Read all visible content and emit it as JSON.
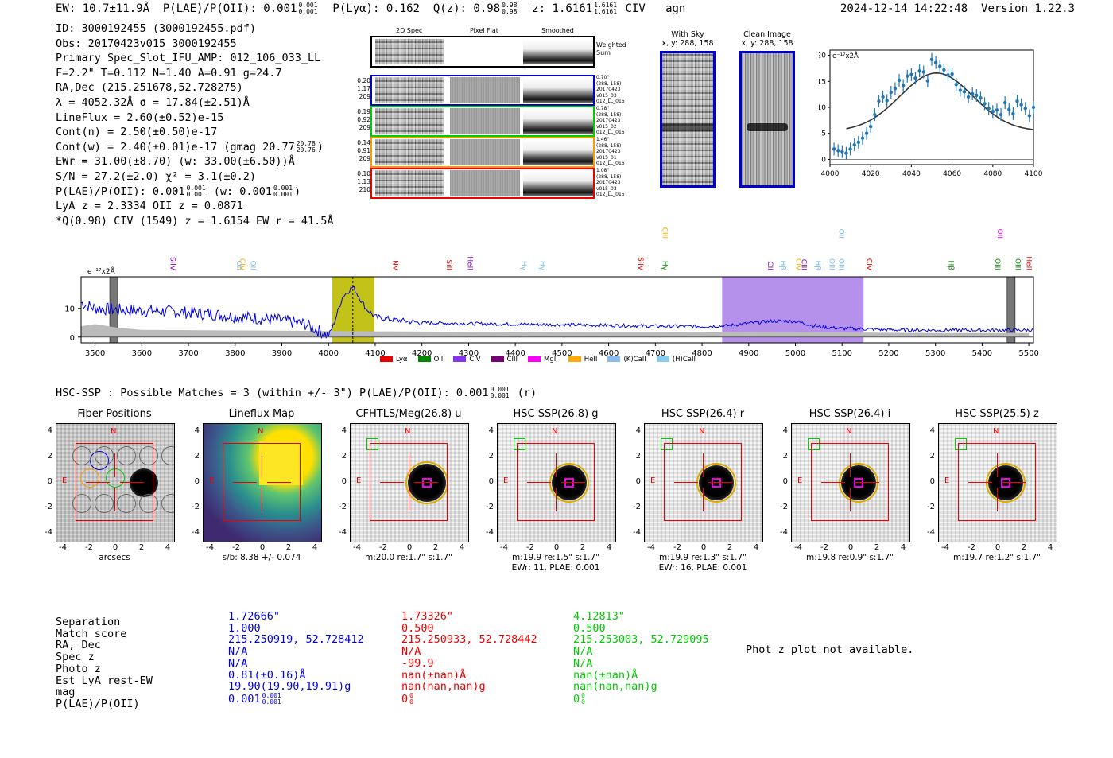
{
  "header": {
    "ew": "EW: 10.7±11.9Å",
    "plae_label": "P(LAE)/P(OII): 0.001",
    "plae_sup": "0.001",
    "plae_sub": "0.001",
    "plya": "P(Lyα): 0.162",
    "qz_label": "Q(z): 0.98",
    "qz_sup": "0.98",
    "qz_sub": "0.98",
    "z_label": "z: 1.6161",
    "z_sup": "1.6161",
    "z_sub": "1.6161",
    "z_line": "CIV",
    "z_class": "agn",
    "datetime": "2024-12-14 14:22:48",
    "version": "Version 1.22.3"
  },
  "info": {
    "id": "ID: 3000192455 (3000192455.pdf)",
    "obs": "Obs: 20170423v015_3000192455",
    "primary": "Primary Spec_Slot_IFU_AMP: 012_106_033_LL",
    "fiber": "F=2.2\"  T=0.112  N=1.40  A=0.91  g=24.7",
    "radec": "RA,Dec (215.251678,52.728275)",
    "lambda": "λ = 4052.32Å  σ = 17.84(±2.51)Å",
    "lineflux": "LineFlux = 2.60(±0.52)e-15",
    "contn": "Cont(n) = 2.50(±0.50)e-17",
    "contw": "Cont(w) = 2.40(±0.01)e-17 (gmag 20.77",
    "contw_sup": "20.78",
    "contw_sub": "20.76",
    "ewr": "EWr = 31.00(±8.70) (w: 33.00(±6.50))Å",
    "sn": "S/N = 27.2(±2.0)  χ² = 3.1(±0.2)",
    "plae": "P(LAE)/P(OII): 0.001",
    "plae_sup": "0.001",
    "plae_sub": "0.001",
    "plae_w": "(w: 0.001",
    "plae_w_sup": "0.001",
    "plae_w_sub": "0.001",
    "lya": "LyA z = 2.3334  OII z = 0.0871",
    "civ": "*Q(0.98) CIV (1549) z = 1.6154  EW r = 41.5Å"
  },
  "cutouts": {
    "col_2d": "2D Spec",
    "col_flat": "Pixel Flat",
    "col_smooth": "Smoothed",
    "weighted": "Weighted Sum",
    "rows": [
      {
        "left": [
          "0.20",
          "1.17",
          "209"
        ],
        "right": [
          "0.70\"",
          "(288, 158)",
          "20170423",
          "v015_03",
          "012_LL_016"
        ],
        "color": "#0000cc"
      },
      {
        "left": [
          "0.19",
          "0.92",
          "209"
        ],
        "right": [
          "0.78\"",
          "(288, 158)",
          "20170423",
          "v015_02",
          "012_LL_016"
        ],
        "color": "#00cc00"
      },
      {
        "left": [
          "0.14",
          "0.91",
          "209"
        ],
        "right": [
          "1.46\"",
          "(288, 158)",
          "20170423",
          "v015_01",
          "012_LL_016"
        ],
        "color": "#ff9900"
      },
      {
        "left": [
          "0.10",
          "1.13",
          "210"
        ],
        "right": [
          "1.08\"",
          "(288, 158)",
          "20170423",
          "v015_03",
          "012_LL_015"
        ],
        "color": "#ee0000"
      }
    ]
  },
  "stamps": {
    "with_sky": "With Sky",
    "with_sky_xy": "x, y: 288, 158",
    "clean": "Clean Image",
    "clean_xy": "x, y: 288, 158"
  },
  "zoom_chart": {
    "type": "scatter",
    "unit_label": "e⁻¹⁷x2Å",
    "xlim": [
      4000,
      4100
    ],
    "ylim": [
      -1,
      21
    ],
    "x_ticks": [
      "4000",
      "4020",
      "4040",
      "4060",
      "4080",
      "4100"
    ],
    "y_ticks": [
      "0",
      "5",
      "10",
      "15",
      "20"
    ],
    "points": [
      [
        4002,
        2.0
      ],
      [
        4004,
        1.7
      ],
      [
        4006,
        1.5
      ],
      [
        4008,
        1.2
      ],
      [
        4010,
        2.0
      ],
      [
        4012,
        2.8
      ],
      [
        4014,
        3.3
      ],
      [
        4016,
        4.1
      ],
      [
        4018,
        5.0
      ],
      [
        4020,
        6.3
      ],
      [
        4022,
        8.6
      ],
      [
        4024,
        11.2
      ],
      [
        4026,
        12.0
      ],
      [
        4028,
        11.3
      ],
      [
        4030,
        12.9
      ],
      [
        4032,
        13.6
      ],
      [
        4034,
        15.2
      ],
      [
        4036,
        14.2
      ],
      [
        4038,
        16.0
      ],
      [
        4040,
        16.3
      ],
      [
        4042,
        15.6
      ],
      [
        4044,
        17.0
      ],
      [
        4046,
        16.8
      ],
      [
        4048,
        15.1
      ],
      [
        4050,
        19.2
      ],
      [
        4052,
        18.6
      ],
      [
        4054,
        17.9
      ],
      [
        4056,
        17.2
      ],
      [
        4058,
        16.2
      ],
      [
        4060,
        16.4
      ],
      [
        4062,
        14.4
      ],
      [
        4064,
        13.3
      ],
      [
        4066,
        13.0
      ],
      [
        4068,
        12.0
      ],
      [
        4070,
        12.6
      ],
      [
        4072,
        12.3
      ],
      [
        4074,
        11.8
      ],
      [
        4076,
        10.7
      ],
      [
        4078,
        9.8
      ],
      [
        4080,
        9.2
      ],
      [
        4082,
        9.5
      ],
      [
        4084,
        8.6
      ],
      [
        4086,
        10.9
      ],
      [
        4088,
        9.6
      ],
      [
        4090,
        8.8
      ],
      [
        4092,
        11.2
      ],
      [
        4094,
        10.5
      ],
      [
        4096,
        9.8
      ],
      [
        4098,
        8.4
      ],
      [
        4100,
        10.0
      ]
    ],
    "fit": {
      "center": 4052.32,
      "sigma": 17.84,
      "amp": 11.2,
      "base": 5.4
    }
  },
  "chart_data": {
    "type": "line",
    "title": "",
    "unit_label": "e⁻¹⁷x2Å",
    "xlabel": "",
    "ylabel": "",
    "xlim": [
      3470,
      5510
    ],
    "ylim": [
      -2,
      21
    ],
    "x_ticks": [
      "3500",
      "3600",
      "3700",
      "3800",
      "3900",
      "4000",
      "4100",
      "4200",
      "4300",
      "4400",
      "4500",
      "4600",
      "4700",
      "4800",
      "4900",
      "5000",
      "5100",
      "5200",
      "5300",
      "5400",
      "5500"
    ],
    "y_ticks": [
      "0",
      "10"
    ],
    "series": [
      {
        "name": "spectrum",
        "color": "#0000dd",
        "x": [
          3470,
          3500,
          3520,
          3550,
          3600,
          3650,
          3700,
          3750,
          3800,
          3850,
          3900,
          3950,
          3990,
          4000,
          4010,
          4030,
          4045,
          4052,
          4060,
          4080,
          4100,
          4150,
          4200,
          4300,
          4400,
          4500,
          4600,
          4700,
          4800,
          4850,
          4900,
          4950,
          5000,
          5050,
          5100,
          5150,
          5200,
          5300,
          5400,
          5460,
          5500
        ],
        "y": [
          12,
          10,
          9.8,
          9.5,
          9.2,
          9.0,
          8.5,
          8.0,
          7.2,
          6.5,
          5.8,
          4.5,
          1.2,
          0.4,
          4.0,
          14.0,
          16.5,
          17.5,
          15.5,
          10.0,
          7.0,
          5.8,
          5.0,
          4.7,
          4.5,
          4.3,
          4.1,
          3.8,
          3.7,
          3.9,
          4.8,
          5.6,
          5.5,
          3.6,
          3.0,
          2.8,
          2.5,
          2.4,
          2.4,
          2.4,
          2.4
        ]
      },
      {
        "name": "sky",
        "color": "#bbbbbb",
        "x": [
          3470,
          3500,
          3550,
          3600,
          3700,
          3800,
          3900,
          4000,
          4100,
          4200,
          4300,
          4400,
          4500,
          4600,
          4700,
          4800,
          4900,
          5000,
          5100,
          5200,
          5300,
          5400,
          5500
        ],
        "y": [
          3.8,
          4.5,
          3.2,
          2.5,
          2.4,
          2.3,
          2.2,
          2.1,
          2.0,
          1.9,
          1.8,
          1.7,
          1.6,
          1.6,
          1.6,
          1.7,
          1.8,
          1.7,
          1.6,
          1.5,
          1.4,
          1.4,
          1.4
        ]
      }
    ],
    "regions": [
      {
        "name": "civ-region",
        "x0": 4008,
        "x1": 4098,
        "color": "#bbbb00"
      },
      {
        "name": "oii-region",
        "x0": 4843,
        "x1": 5146,
        "color": "#a97ee8"
      }
    ],
    "marker_line": 4052,
    "masks": [
      3540,
      5462
    ],
    "lines": [
      {
        "name": "SiIV",
        "x": 3658,
        "color": "#8800cc"
      },
      {
        "name": "OII",
        "x": 3800,
        "color": "#77bbee"
      },
      {
        "name": "CIV",
        "x": 3807,
        "color": "#ffaa00"
      },
      {
        "name": "OII",
        "x": 3830,
        "color": "#77bbee"
      },
      {
        "name": "NV",
        "x": 4135,
        "color": "#ee0000"
      },
      {
        "name": "SiII",
        "x": 4250,
        "color": "#ee0000"
      },
      {
        "name": "HeII",
        "x": 4295,
        "color": "#8800cc"
      },
      {
        "name": "Hγ",
        "x": 4410,
        "color": "#77bbee"
      },
      {
        "name": "Hγ",
        "x": 4450,
        "color": "#77bbee"
      },
      {
        "name": "SiIV",
        "x": 4660,
        "color": "#ee0000"
      },
      {
        "name": "Hγ",
        "x": 4712,
        "color": "#008800"
      },
      {
        "name": "CIII",
        "x": 4712,
        "color": "#ffaa00"
      },
      {
        "name": "CII",
        "x": 4938,
        "color": "#8800cc"
      },
      {
        "name": "Hβ",
        "x": 4965,
        "color": "#77bbee"
      },
      {
        "name": "CIV",
        "x": 4998,
        "color": "#ffaa00"
      },
      {
        "name": "CIII",
        "x": 5010,
        "color": "#8800cc"
      },
      {
        "name": "Hβ",
        "x": 5040,
        "color": "#77bbee"
      },
      {
        "name": "OIII",
        "x": 5070,
        "color": "#77bbee"
      },
      {
        "name": "OIII",
        "x": 5090,
        "color": "#77bbee"
      },
      {
        "name": "CIV",
        "x": 5150,
        "color": "#ee0000"
      },
      {
        "name": "Hβ",
        "x": 5325,
        "color": "#008800"
      },
      {
        "name": "OIII",
        "x": 5425,
        "color": "#008800"
      },
      {
        "name": "OIII",
        "x": 5468,
        "color": "#008800"
      },
      {
        "name": "HeII",
        "x": 5492,
        "color": "#ee0000"
      },
      {
        "name": "OII",
        "x": 5090,
        "color": "#77bbee"
      },
      {
        "name": "OII",
        "x": 5430,
        "color": "#ee00ee"
      }
    ],
    "legend": [
      {
        "label": "Lyα",
        "color": "#ee0000"
      },
      {
        "label": "OII",
        "color": "#008800"
      },
      {
        "label": "CIV",
        "color": "#8833ee"
      },
      {
        "label": "CIII",
        "color": "#770077"
      },
      {
        "label": "MgII",
        "color": "#ff00ff"
      },
      {
        "label": "HeII",
        "color": "#ffaa00"
      },
      {
        "label": "(K)CaII",
        "color": "#88bbee"
      },
      {
        "label": "(H)CaII",
        "color": "#88ccee"
      }
    ]
  },
  "matches": {
    "header": "HSC-SSP : Possible Matches = 3 (within +/- 3\")  P(LAE)/P(OII): 0.001",
    "header_sup": "0.001",
    "header_sub": "0.001",
    "header_tail": "(r)"
  },
  "panels": [
    {
      "title": "Fiber Positions",
      "xlabel": "arcsecs",
      "note1": "",
      "note2": ""
    },
    {
      "title": "Lineflux Map",
      "xlabel": "s/b: 8.38 +/- 0.074",
      "note1": "",
      "note2": ""
    },
    {
      "title": "CFHTLS/Meg(26.8) u",
      "xlabel": "m:20.0  re:1.7\"  s:1.7\"",
      "note1": "",
      "note2": ""
    },
    {
      "title": "HSC SSP(26.8) g",
      "xlabel": "m:19.9  re:1.5\"  s:1.7\"",
      "note1": "EWr: 11, PLAE: 0.001",
      "note2": ""
    },
    {
      "title": "HSC SSP(26.4) r",
      "xlabel": "m:19.9  re:1.3\"  s:1.7\"",
      "note1": "EWr: 16, PLAE: 0.001",
      "note2": ""
    },
    {
      "title": "HSC SSP(26.4) i",
      "xlabel": "m:19.8  re:0.9\"  s:1.7\"",
      "note1": "",
      "note2": ""
    },
    {
      "title": "HSC SSP(25.5) z",
      "xlabel": "m:19.7  re:1.2\"  s:1.7\"",
      "note1": "",
      "note2": ""
    }
  ],
  "panel_axis": {
    "ticks": [
      "4",
      "2",
      "0",
      "-2",
      "-4"
    ],
    "xticks": [
      "-4",
      "-2",
      "0",
      "2",
      "4"
    ],
    "n": "N",
    "e": "E"
  },
  "table": {
    "labels": [
      "Separation",
      "Match score",
      "RA, Dec",
      "Spec z",
      "Photo z",
      "Est LyA rest-EW",
      "mag",
      "P(LAE)/P(OII)"
    ],
    "columns": [
      {
        "color": "#0000dd",
        "values": [
          "1.72666\"",
          "1.000",
          "215.250919, 52.728412",
          "N/A",
          "N/A",
          "0.81(±0.16)Å",
          "19.90(19.90,19.91)g",
          "0.001"
        ],
        "sup": "0.001",
        "sub": "0.001"
      },
      {
        "color": "#ee0000",
        "values": [
          "1.73326\"",
          "0.500",
          "215.250933, 52.728442",
          "N/A",
          "-99.9",
          "nan(±nan)Å",
          "nan(nan,nan)g",
          "0"
        ],
        "sup": "0",
        "sub": "0"
      },
      {
        "color": "#00cc00",
        "values": [
          "4.12813\"",
          "0.500",
          "215.253003, 52.729095",
          "N/A",
          "N/A",
          "nan(±nan)Å",
          "nan(nan,nan)g",
          "0"
        ],
        "sup": "0",
        "sub": "0"
      }
    ],
    "photz_note": "Phot z plot not available."
  }
}
